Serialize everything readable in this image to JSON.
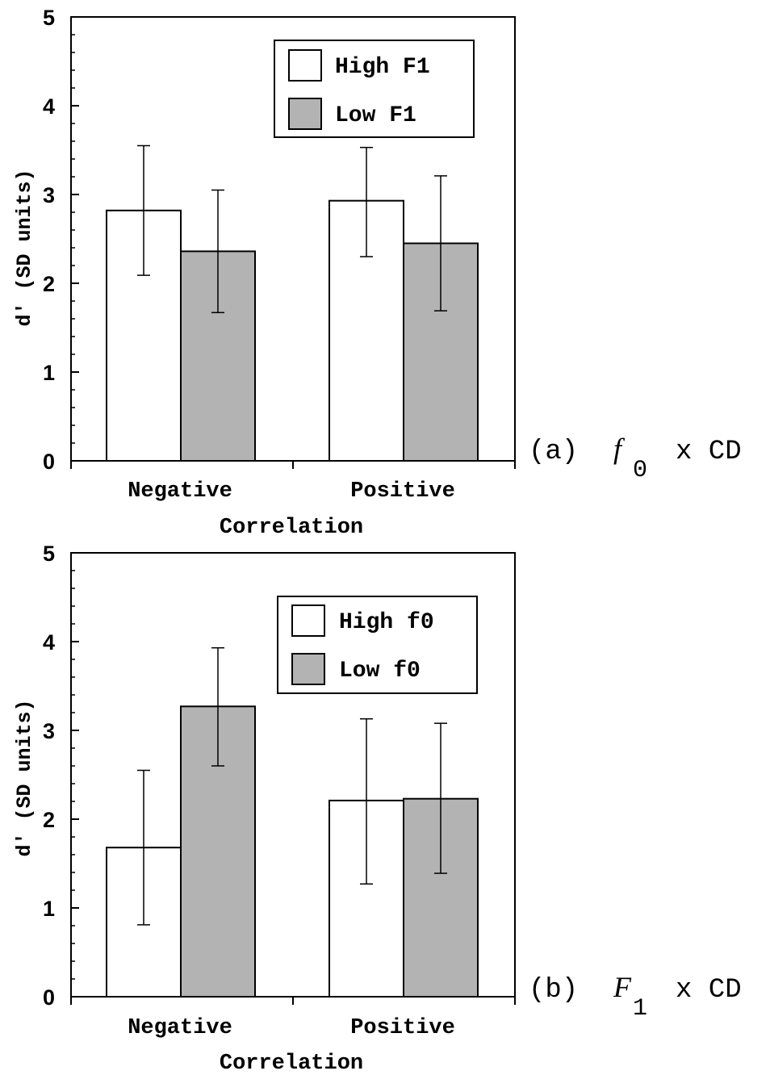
{
  "colors": {
    "high": "#ffffff",
    "low": "#b3b3b3",
    "stroke": "#000000"
  },
  "chart_data": [
    {
      "type": "bar",
      "categories": [
        "Negative",
        "Positive"
      ],
      "series": [
        {
          "name": "High F1",
          "values": [
            2.82,
            2.93
          ],
          "err_low": [
            2.09,
            2.3
          ],
          "err_high": [
            3.55,
            3.53
          ]
        },
        {
          "name": "Low F1",
          "values": [
            2.36,
            2.45
          ],
          "err_low": [
            1.67,
            1.69
          ],
          "err_high": [
            3.05,
            3.21
          ]
        }
      ],
      "xlabel": "Correlation",
      "ylabel": "d' (SD units)",
      "ylim": [
        0,
        5
      ],
      "yticks": [
        "0",
        "1",
        "2",
        "3",
        "4",
        "5"
      ],
      "legend_position": "top-right",
      "panel": {
        "prefix": "(a)",
        "var": "f",
        "sub": "0",
        "suffix": "x CD"
      }
    },
    {
      "type": "bar",
      "categories": [
        "Negative",
        "Positive"
      ],
      "series": [
        {
          "name": "High f0",
          "values": [
            1.68,
            2.21
          ],
          "err_low": [
            0.81,
            1.27
          ],
          "err_high": [
            2.55,
            3.13
          ]
        },
        {
          "name": "Low f0",
          "values": [
            3.27,
            2.23
          ],
          "err_low": [
            2.6,
            1.39
          ],
          "err_high": [
            3.93,
            3.08
          ]
        }
      ],
      "xlabel": "Correlation",
      "ylabel": "d' (SD units)",
      "ylim": [
        0,
        5
      ],
      "yticks": [
        "0",
        "1",
        "2",
        "3",
        "4",
        "5"
      ],
      "legend_position": "top-right",
      "panel": {
        "prefix": "(b)",
        "var": "F",
        "sub": "1",
        "suffix": "x CD"
      }
    }
  ]
}
